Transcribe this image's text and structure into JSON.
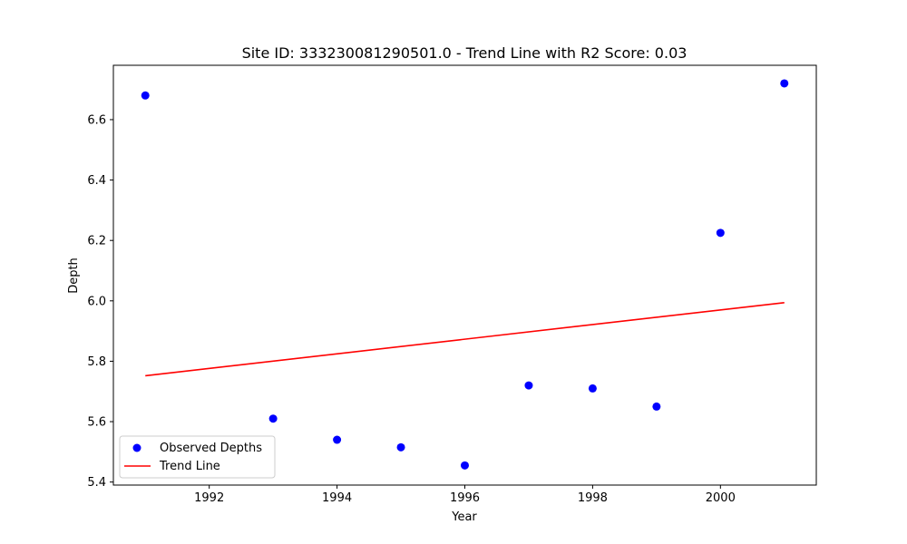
{
  "chart_data": {
    "type": "scatter",
    "title": "Site ID: 333230081290501.0 - Trend Line with R2 Score: 0.03",
    "xlabel": "Year",
    "ylabel": "Depth",
    "xlim": [
      1990.5,
      2001.5
    ],
    "ylim": [
      5.39,
      6.78
    ],
    "xticks": [
      1992,
      1994,
      1996,
      1998,
      2000
    ],
    "yticks": [
      5.4,
      5.6,
      5.8,
      6.0,
      6.2,
      6.4,
      6.6
    ],
    "grid": false,
    "legend_position": "lower-left",
    "series": [
      {
        "name": "Observed Depths",
        "kind": "scatter",
        "color": "#0000ff",
        "x": [
          1991,
          1993,
          1994,
          1995,
          1996,
          1997,
          1998,
          1999,
          2000,
          2001
        ],
        "y": [
          6.68,
          5.61,
          5.54,
          5.515,
          5.455,
          5.72,
          5.71,
          5.65,
          6.225,
          6.72
        ]
      },
      {
        "name": "Trend Line",
        "kind": "line",
        "color": "#ff0000",
        "x": [
          1991,
          2001
        ],
        "y": [
          5.752,
          5.994
        ]
      }
    ]
  }
}
